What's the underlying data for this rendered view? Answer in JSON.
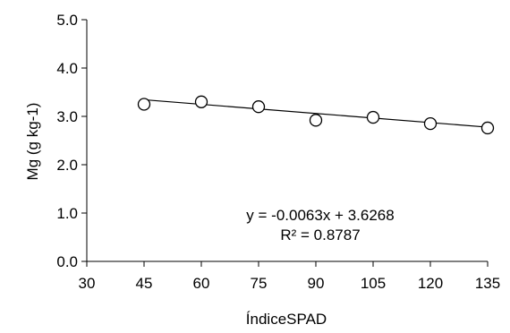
{
  "chart_data": {
    "type": "scatter",
    "title": "",
    "xlabel": "ÍndiceSPAD",
    "ylabel": "Mg (g kg-1)",
    "xlim": [
      30,
      135
    ],
    "ylim": [
      0.0,
      5.0
    ],
    "x_ticks": [
      30,
      45,
      60,
      75,
      90,
      105,
      120,
      135
    ],
    "x_tick_labels": [
      "30",
      "45",
      "60",
      "75",
      "90",
      "105",
      "120",
      "135"
    ],
    "y_ticks": [
      0.0,
      1.0,
      2.0,
      3.0,
      4.0,
      5.0
    ],
    "y_tick_labels": [
      "0.0",
      "1.0",
      "2.0",
      "3.0",
      "4.0",
      "5.0"
    ],
    "grid": false,
    "series": [
      {
        "x": [
          45,
          60,
          75,
          90,
          105,
          120,
          135
        ],
        "y": [
          3.25,
          3.3,
          3.2,
          2.92,
          2.98,
          2.85,
          2.76
        ],
        "marker": "open-circle",
        "color": "#000000"
      }
    ],
    "trendline": {
      "slope": -0.0063,
      "intercept": 3.6268,
      "x_range": [
        45,
        135
      ],
      "color": "#000000"
    },
    "annotations": [
      "y = -0.0063x + 3.6268",
      "R² = 0.8787"
    ]
  }
}
